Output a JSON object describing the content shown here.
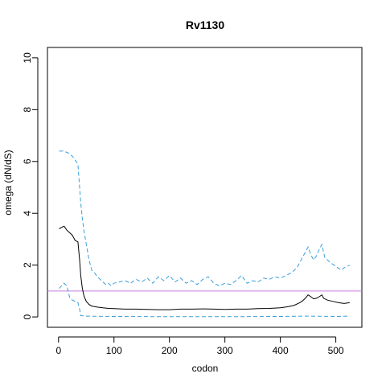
{
  "chart_data": {
    "type": "line",
    "title": "Rv1130",
    "xlabel": "codon",
    "ylabel": "omega (dN/dS)",
    "xlim": [
      -20,
      547
    ],
    "ylim": [
      -0.4,
      10.4
    ],
    "x_ticks": [
      0,
      100,
      200,
      300,
      400,
      500
    ],
    "y_ticks": [
      0,
      2,
      4,
      6,
      8,
      10
    ],
    "reference_line": {
      "y": 1,
      "color": "#c77cd6"
    },
    "series": [
      {
        "style": "solid",
        "color": "#000000",
        "points": [
          [
            1,
            3.4
          ],
          [
            5,
            3.45
          ],
          [
            10,
            3.5
          ],
          [
            15,
            3.35
          ],
          [
            20,
            3.25
          ],
          [
            25,
            3.15
          ],
          [
            30,
            2.95
          ],
          [
            35,
            2.9
          ],
          [
            38,
            2.2
          ],
          [
            40,
            1.6
          ],
          [
            43,
            1.1
          ],
          [
            46,
            0.8
          ],
          [
            50,
            0.6
          ],
          [
            55,
            0.48
          ],
          [
            60,
            0.42
          ],
          [
            70,
            0.38
          ],
          [
            80,
            0.35
          ],
          [
            90,
            0.33
          ],
          [
            100,
            0.32
          ],
          [
            120,
            0.3
          ],
          [
            140,
            0.3
          ],
          [
            160,
            0.29
          ],
          [
            180,
            0.28
          ],
          [
            200,
            0.28
          ],
          [
            220,
            0.3
          ],
          [
            240,
            0.3
          ],
          [
            260,
            0.31
          ],
          [
            280,
            0.3
          ],
          [
            300,
            0.29
          ],
          [
            320,
            0.3
          ],
          [
            340,
            0.3
          ],
          [
            360,
            0.32
          ],
          [
            380,
            0.33
          ],
          [
            400,
            0.35
          ],
          [
            415,
            0.4
          ],
          [
            425,
            0.45
          ],
          [
            435,
            0.55
          ],
          [
            440,
            0.62
          ],
          [
            445,
            0.72
          ],
          [
            450,
            0.85
          ],
          [
            455,
            0.78
          ],
          [
            460,
            0.7
          ],
          [
            465,
            0.72
          ],
          [
            470,
            0.78
          ],
          [
            475,
            0.85
          ],
          [
            478,
            0.72
          ],
          [
            485,
            0.65
          ],
          [
            495,
            0.6
          ],
          [
            505,
            0.55
          ],
          [
            515,
            0.52
          ],
          [
            525,
            0.55
          ]
        ]
      },
      {
        "style": "dashed",
        "color": "#3a9fd8",
        "points": [
          [
            1,
            6.4
          ],
          [
            10,
            6.4
          ],
          [
            15,
            6.35
          ],
          [
            20,
            6.3
          ],
          [
            25,
            6.2
          ],
          [
            30,
            6.05
          ],
          [
            35,
            5.9
          ],
          [
            38,
            5.0
          ],
          [
            40,
            4.4
          ],
          [
            43,
            3.8
          ],
          [
            46,
            3.3
          ],
          [
            50,
            2.8
          ],
          [
            55,
            2.2
          ],
          [
            60,
            1.8
          ],
          [
            65,
            1.7
          ],
          [
            70,
            1.55
          ],
          [
            75,
            1.45
          ],
          [
            80,
            1.35
          ],
          [
            85,
            1.25
          ],
          [
            90,
            1.3
          ],
          [
            95,
            1.2
          ],
          [
            100,
            1.3
          ],
          [
            110,
            1.35
          ],
          [
            120,
            1.4
          ],
          [
            130,
            1.3
          ],
          [
            140,
            1.45
          ],
          [
            150,
            1.35
          ],
          [
            160,
            1.5
          ],
          [
            170,
            1.3
          ],
          [
            180,
            1.55
          ],
          [
            190,
            1.4
          ],
          [
            200,
            1.6
          ],
          [
            210,
            1.35
          ],
          [
            220,
            1.5
          ],
          [
            230,
            1.3
          ],
          [
            240,
            1.4
          ],
          [
            250,
            1.25
          ],
          [
            260,
            1.45
          ],
          [
            270,
            1.55
          ],
          [
            280,
            1.3
          ],
          [
            290,
            1.2
          ],
          [
            300,
            1.3
          ],
          [
            310,
            1.25
          ],
          [
            320,
            1.4
          ],
          [
            330,
            1.6
          ],
          [
            340,
            1.3
          ],
          [
            350,
            1.4
          ],
          [
            360,
            1.35
          ],
          [
            370,
            1.5
          ],
          [
            380,
            1.45
          ],
          [
            390,
            1.55
          ],
          [
            400,
            1.5
          ],
          [
            410,
            1.6
          ],
          [
            420,
            1.7
          ],
          [
            430,
            1.9
          ],
          [
            440,
            2.3
          ],
          [
            445,
            2.5
          ],
          [
            450,
            2.7
          ],
          [
            455,
            2.4
          ],
          [
            460,
            2.2
          ],
          [
            465,
            2.35
          ],
          [
            470,
            2.6
          ],
          [
            475,
            2.8
          ],
          [
            480,
            2.3
          ],
          [
            490,
            2.1
          ],
          [
            500,
            1.95
          ],
          [
            510,
            1.8
          ],
          [
            515,
            1.9
          ],
          [
            520,
            1.95
          ],
          [
            525,
            2.0
          ]
        ]
      },
      {
        "style": "dashed",
        "color": "#3a9fd8",
        "points": [
          [
            1,
            1.1
          ],
          [
            10,
            1.3
          ],
          [
            15,
            1.2
          ],
          [
            20,
            0.75
          ],
          [
            25,
            0.65
          ],
          [
            30,
            0.6
          ],
          [
            35,
            0.55
          ],
          [
            38,
            0.3
          ],
          [
            40,
            0.05
          ],
          [
            50,
            0.03
          ],
          [
            100,
            0.02
          ],
          [
            200,
            0.01
          ],
          [
            300,
            0.01
          ],
          [
            400,
            0.02
          ],
          [
            450,
            0.03
          ],
          [
            500,
            0.02
          ],
          [
            525,
            0.03
          ]
        ]
      }
    ]
  }
}
